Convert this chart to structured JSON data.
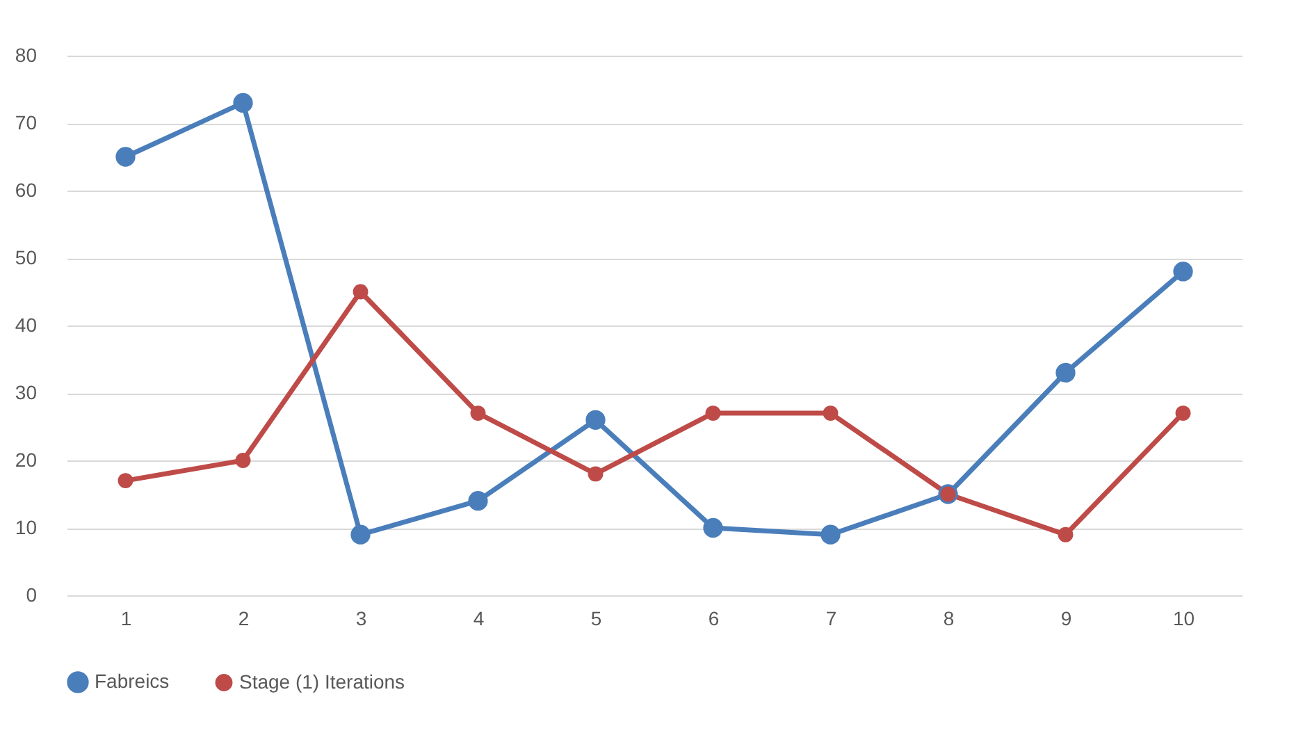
{
  "chart_data": {
    "type": "line",
    "categories": [
      "1",
      "2",
      "3",
      "4",
      "5",
      "6",
      "7",
      "8",
      "9",
      "10"
    ],
    "series": [
      {
        "name": "Fabreics",
        "color": "#4a7ebb",
        "values": [
          65,
          73,
          9,
          14,
          26,
          10,
          9,
          15,
          33,
          48
        ]
      },
      {
        "name": "Stage (1) Iterations",
        "color": "#be4b48",
        "values": [
          17,
          20,
          45,
          27,
          18,
          27,
          27,
          15,
          9,
          27
        ]
      }
    ],
    "ylim": [
      0,
      80
    ],
    "yticks": [
      0,
      10,
      20,
      30,
      40,
      50,
      60,
      70,
      80
    ],
    "grid": "y",
    "legend": "bottom",
    "marker": "circle",
    "line_style": "solid"
  }
}
